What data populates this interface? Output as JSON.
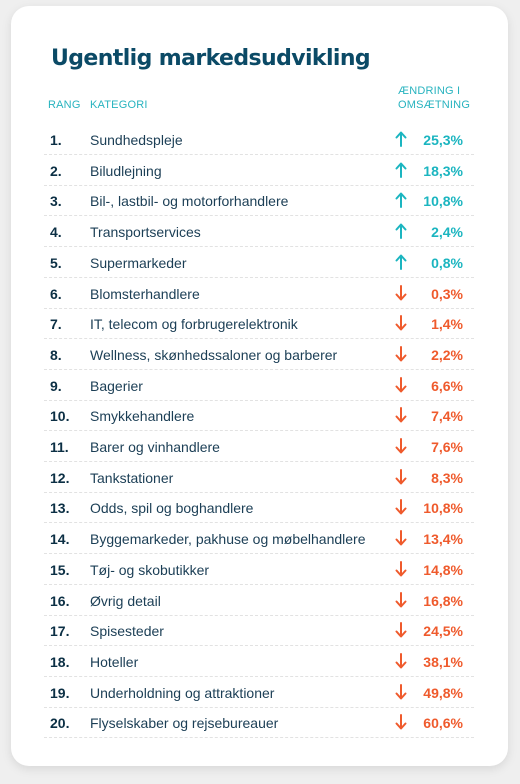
{
  "colors": {
    "title": "#0b4a66",
    "header": "#27b3bf",
    "up": "#1bb5c0",
    "down": "#ef5a2c",
    "text": "#1b3e55"
  },
  "chart_data": {
    "type": "table",
    "title": "Ugentlig markedsudvikling",
    "columns": {
      "rank": "RANG",
      "category": "KATEGORI",
      "change_line1": "ÆNDRING I",
      "change_line2": "OMSÆTNING"
    },
    "rows": [
      {
        "rank": "1.",
        "category": "Sundhedspleje",
        "direction": "up",
        "value": 25.3,
        "label": "25,3%"
      },
      {
        "rank": "2.",
        "category": "Biludlejning",
        "direction": "up",
        "value": 18.3,
        "label": "18,3%"
      },
      {
        "rank": "3.",
        "category": "Bil-, lastbil- og motorforhandlere",
        "direction": "up",
        "value": 10.8,
        "label": "10,8%"
      },
      {
        "rank": "4.",
        "category": "Transportservices",
        "direction": "up",
        "value": 2.4,
        "label": "2,4%"
      },
      {
        "rank": "5.",
        "category": "Supermarkeder",
        "direction": "up",
        "value": 0.8,
        "label": "0,8%"
      },
      {
        "rank": "6.",
        "category": "Blomsterhandlere",
        "direction": "down",
        "value": -0.3,
        "label": "0,3%"
      },
      {
        "rank": "7.",
        "category": "IT, telecom og forbrugerelektronik",
        "direction": "down",
        "value": -1.4,
        "label": "1,4%"
      },
      {
        "rank": "8.",
        "category": "Wellness, skønhedssaloner og barberer",
        "direction": "down",
        "value": -2.2,
        "label": "2,2%"
      },
      {
        "rank": "9.",
        "category": "Bagerier",
        "direction": "down",
        "value": -6.6,
        "label": "6,6%"
      },
      {
        "rank": "10.",
        "category": "Smykkehandlere",
        "direction": "down",
        "value": -7.4,
        "label": "7,4%"
      },
      {
        "rank": "11.",
        "category": "Barer og vinhandlere",
        "direction": "down",
        "value": -7.6,
        "label": "7,6%"
      },
      {
        "rank": "12.",
        "category": "Tankstationer",
        "direction": "down",
        "value": -8.3,
        "label": "8,3%"
      },
      {
        "rank": "13.",
        "category": "Odds, spil og boghandlere",
        "direction": "down",
        "value": -10.8,
        "label": "10,8%"
      },
      {
        "rank": "14.",
        "category": "Byggemarkeder, pakhuse og møbelhandlere",
        "direction": "down",
        "value": -13.4,
        "label": "13,4%"
      },
      {
        "rank": "15.",
        "category": "Tøj- og skobutikker",
        "direction": "down",
        "value": -14.8,
        "label": "14,8%"
      },
      {
        "rank": "16.",
        "category": "Øvrig detail",
        "direction": "down",
        "value": -16.8,
        "label": "16,8%"
      },
      {
        "rank": "17.",
        "category": "Spisesteder",
        "direction": "down",
        "value": -24.5,
        "label": "24,5%"
      },
      {
        "rank": "18.",
        "category": "Hoteller",
        "direction": "down",
        "value": -38.1,
        "label": "38,1%"
      },
      {
        "rank": "19.",
        "category": "Underholdning og attraktioner",
        "direction": "down",
        "value": -49.8,
        "label": "49,8%"
      },
      {
        "rank": "20.",
        "category": "Flyselskaber og rejsebureauer",
        "direction": "down",
        "value": -60.6,
        "label": "60,6%"
      }
    ]
  }
}
